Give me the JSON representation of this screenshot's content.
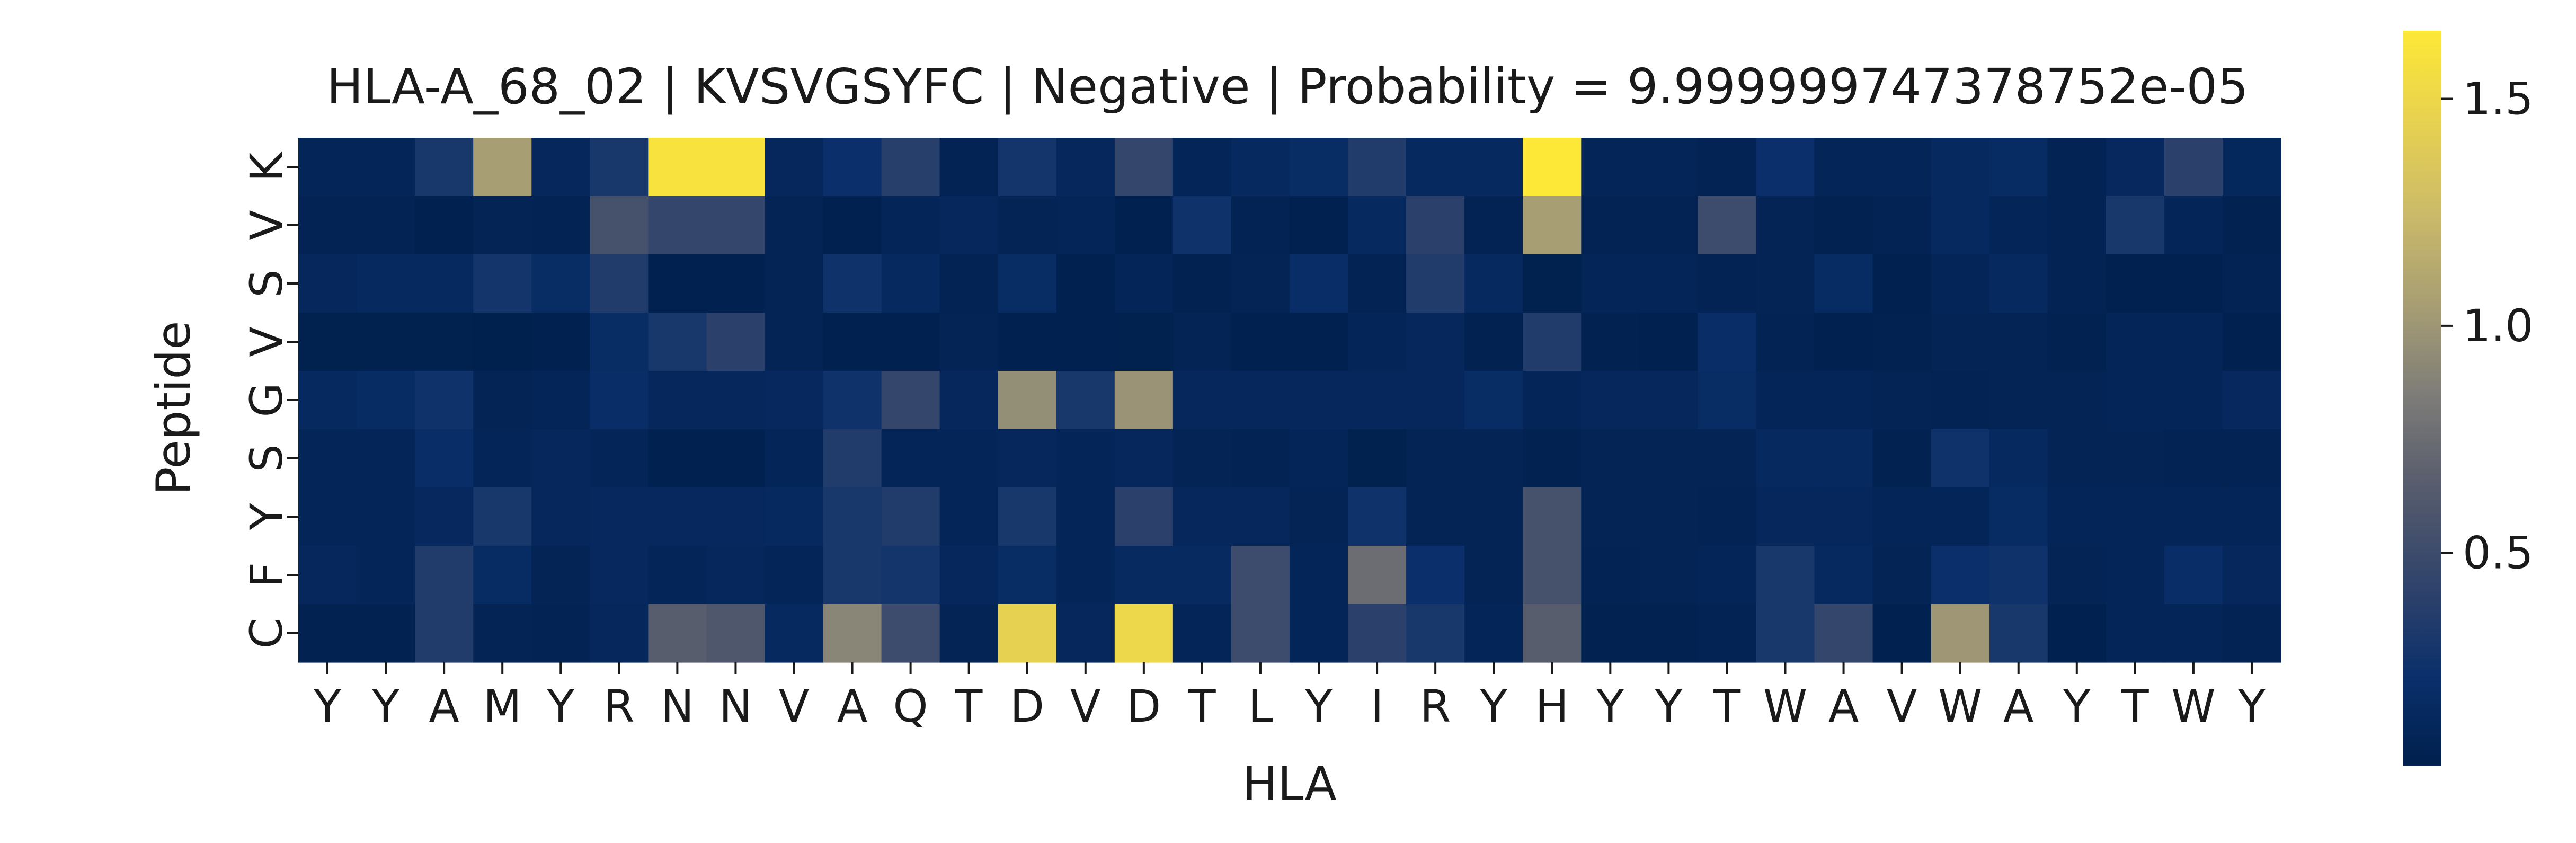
{
  "chart_data": {
    "type": "heatmap",
    "title": "HLA-A_68_02 | KVSVGSYFC | Negative | Probability = 9.999999747378752e-05",
    "xlabel": "HLA",
    "ylabel": "Peptide",
    "x_tick_labels": [
      "Y",
      "Y",
      "A",
      "M",
      "Y",
      "R",
      "N",
      "N",
      "V",
      "A",
      "Q",
      "T",
      "D",
      "V",
      "D",
      "T",
      "L",
      "Y",
      "I",
      "R",
      "Y",
      "H",
      "Y",
      "Y",
      "T",
      "W",
      "A",
      "V",
      "W",
      "A",
      "Y",
      "T",
      "W",
      "Y"
    ],
    "y_tick_labels": [
      "K",
      "V",
      "S",
      "V",
      "G",
      "S",
      "Y",
      "F",
      "C"
    ],
    "colormap": "cividis",
    "colorbar": {
      "min": 0.03,
      "max": 1.65,
      "ticks": [
        "0.5",
        "1.0",
        "1.5"
      ],
      "tick_values": [
        0.5,
        1.0,
        1.5
      ]
    },
    "values": [
      [
        0.1,
        0.1,
        0.3,
        1.05,
        0.12,
        0.3,
        1.6,
        1.6,
        0.12,
        0.22,
        0.38,
        0.07,
        0.28,
        0.12,
        0.45,
        0.1,
        0.15,
        0.18,
        0.35,
        0.15,
        0.15,
        1.65,
        0.1,
        0.1,
        0.07,
        0.22,
        0.1,
        0.1,
        0.15,
        0.17,
        0.07,
        0.14,
        0.4,
        0.13
      ],
      [
        0.07,
        0.07,
        0.05,
        0.08,
        0.07,
        0.55,
        0.45,
        0.45,
        0.08,
        0.05,
        0.1,
        0.12,
        0.08,
        0.1,
        0.05,
        0.25,
        0.07,
        0.05,
        0.15,
        0.4,
        0.07,
        1.05,
        0.07,
        0.07,
        0.5,
        0.08,
        0.06,
        0.07,
        0.15,
        0.1,
        0.07,
        0.3,
        0.1,
        0.06
      ],
      [
        0.12,
        0.15,
        0.15,
        0.28,
        0.18,
        0.35,
        0.05,
        0.05,
        0.08,
        0.25,
        0.15,
        0.07,
        0.18,
        0.05,
        0.1,
        0.06,
        0.08,
        0.2,
        0.07,
        0.35,
        0.15,
        0.04,
        0.1,
        0.1,
        0.07,
        0.08,
        0.17,
        0.05,
        0.1,
        0.15,
        0.07,
        0.05,
        0.05,
        0.07
      ],
      [
        0.04,
        0.04,
        0.04,
        0.03,
        0.05,
        0.18,
        0.3,
        0.4,
        0.08,
        0.05,
        0.05,
        0.08,
        0.05,
        0.05,
        0.04,
        0.08,
        0.05,
        0.05,
        0.1,
        0.12,
        0.06,
        0.35,
        0.06,
        0.05,
        0.2,
        0.07,
        0.05,
        0.06,
        0.08,
        0.08,
        0.06,
        0.1,
        0.1,
        0.05
      ],
      [
        0.15,
        0.17,
        0.25,
        0.08,
        0.1,
        0.2,
        0.12,
        0.12,
        0.14,
        0.25,
        0.45,
        0.12,
        0.95,
        0.3,
        0.98,
        0.12,
        0.12,
        0.12,
        0.12,
        0.12,
        0.18,
        0.1,
        0.12,
        0.12,
        0.18,
        0.1,
        0.1,
        0.08,
        0.07,
        0.08,
        0.08,
        0.1,
        0.1,
        0.14
      ],
      [
        0.1,
        0.1,
        0.2,
        0.1,
        0.12,
        0.1,
        0.05,
        0.05,
        0.1,
        0.35,
        0.1,
        0.1,
        0.12,
        0.1,
        0.12,
        0.08,
        0.07,
        0.1,
        0.04,
        0.08,
        0.08,
        0.06,
        0.08,
        0.08,
        0.08,
        0.15,
        0.15,
        0.06,
        0.25,
        0.15,
        0.08,
        0.08,
        0.07,
        0.07
      ],
      [
        0.1,
        0.1,
        0.14,
        0.3,
        0.12,
        0.14,
        0.14,
        0.14,
        0.15,
        0.3,
        0.35,
        0.1,
        0.3,
        0.1,
        0.4,
        0.12,
        0.12,
        0.08,
        0.25,
        0.08,
        0.08,
        0.55,
        0.08,
        0.08,
        0.07,
        0.12,
        0.12,
        0.1,
        0.1,
        0.17,
        0.1,
        0.1,
        0.1,
        0.1
      ],
      [
        0.12,
        0.1,
        0.35,
        0.17,
        0.08,
        0.14,
        0.1,
        0.12,
        0.1,
        0.3,
        0.28,
        0.12,
        0.18,
        0.1,
        0.16,
        0.16,
        0.5,
        0.1,
        0.75,
        0.22,
        0.08,
        0.55,
        0.07,
        0.08,
        0.1,
        0.3,
        0.15,
        0.08,
        0.22,
        0.25,
        0.08,
        0.1,
        0.2,
        0.12
      ],
      [
        0.06,
        0.06,
        0.35,
        0.08,
        0.07,
        0.12,
        0.65,
        0.6,
        0.15,
        0.9,
        0.5,
        0.08,
        1.45,
        0.12,
        1.5,
        0.1,
        0.5,
        0.1,
        0.4,
        0.3,
        0.1,
        0.65,
        0.06,
        0.06,
        0.07,
        0.3,
        0.45,
        0.05,
        1.0,
        0.3,
        0.05,
        0.1,
        0.1,
        0.07
      ]
    ]
  }
}
